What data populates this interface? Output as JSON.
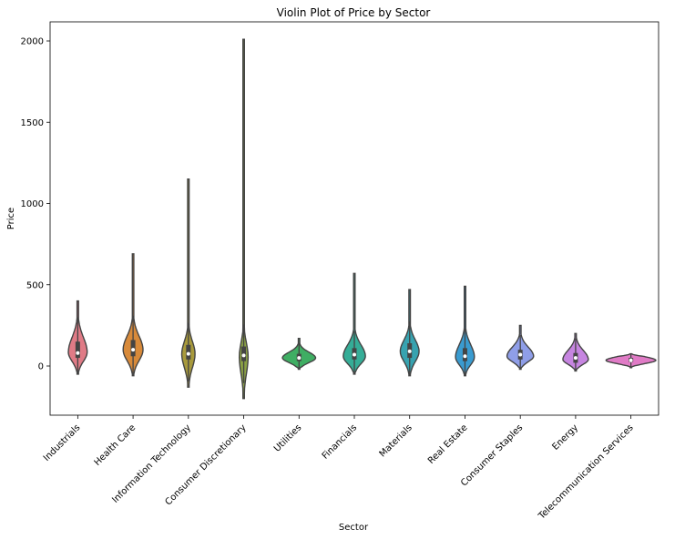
{
  "chart_data": {
    "type": "violin",
    "title": "Violin Plot of Price by Sector",
    "xlabel": "Sector",
    "ylabel": "Price",
    "ylim": [
      -300,
      2100
    ],
    "yticks": [
      0,
      500,
      1000,
      1500,
      2000
    ],
    "legend": "none",
    "grid": false,
    "categories": [
      {
        "name": "Industrials",
        "color": "#e07b86",
        "min": -50,
        "max": 400,
        "q1": 50,
        "median": 80,
        "q3": 150,
        "mode": 85,
        "maxHalfWidth": 0.17
      },
      {
        "name": "Health Care",
        "color": "#d88a3a",
        "min": -60,
        "max": 690,
        "q1": 60,
        "median": 100,
        "q3": 160,
        "mode": 100,
        "maxHalfWidth": 0.18
      },
      {
        "name": "Information Technology",
        "color": "#a89a3c",
        "min": -130,
        "max": 1150,
        "q1": 40,
        "median": 75,
        "q3": 130,
        "mode": 75,
        "maxHalfWidth": 0.12
      },
      {
        "name": "Consumer Discretionary",
        "color": "#8aa044",
        "min": -200,
        "max": 2010,
        "q1": 30,
        "median": 65,
        "q3": 120,
        "mode": 60,
        "maxHalfWidth": 0.08
      },
      {
        "name": "Utilities",
        "color": "#3fae63",
        "min": -20,
        "max": 170,
        "q1": 30,
        "median": 50,
        "q3": 75,
        "mode": 50,
        "maxHalfWidth": 0.3
      },
      {
        "name": "Financials",
        "color": "#35ad97",
        "min": -50,
        "max": 570,
        "q1": 40,
        "median": 70,
        "q3": 110,
        "mode": 60,
        "maxHalfWidth": 0.2
      },
      {
        "name": "Materials",
        "color": "#37a3b0",
        "min": -60,
        "max": 470,
        "q1": 50,
        "median": 90,
        "q3": 140,
        "mode": 90,
        "maxHalfWidth": 0.17
      },
      {
        "name": "Real Estate",
        "color": "#3a9bd0",
        "min": -60,
        "max": 490,
        "q1": 30,
        "median": 60,
        "q3": 110,
        "mode": 55,
        "maxHalfWidth": 0.17
      },
      {
        "name": "Consumer Staples",
        "color": "#8f9ee8",
        "min": -20,
        "max": 250,
        "q1": 40,
        "median": 70,
        "q3": 100,
        "mode": 60,
        "maxHalfWidth": 0.24
      },
      {
        "name": "Energy",
        "color": "#c685e0",
        "min": -30,
        "max": 200,
        "q1": 20,
        "median": 50,
        "q3": 80,
        "mode": 40,
        "maxHalfWidth": 0.23
      },
      {
        "name": "Telecommunication Services",
        "color": "#e07bc6",
        "min": -10,
        "max": 75,
        "q1": 25,
        "median": 35,
        "q3": 50,
        "mode": 35,
        "maxHalfWidth": 0.45
      }
    ]
  }
}
